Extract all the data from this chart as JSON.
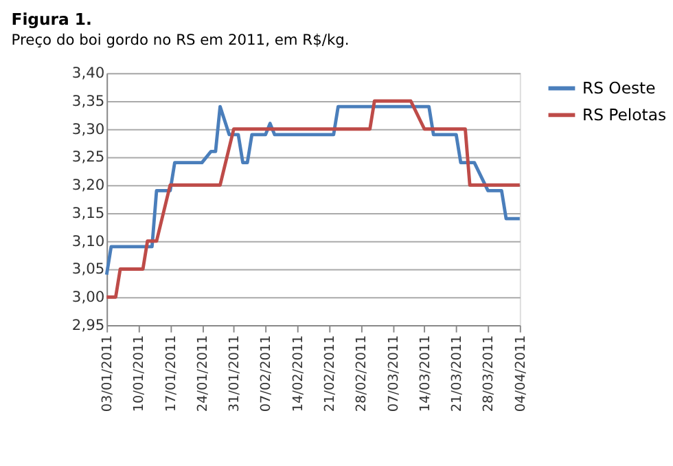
{
  "chart_data": {
    "type": "step",
    "title": "Figura 1.",
    "subtitle": "Preço do boi gordo no RS em 2011, em R$/kg.",
    "series": [
      {
        "name": "RS Oeste",
        "color": "#4a7ebb",
        "x": [
          "2011-01-03",
          "2011-01-04",
          "2011-01-13",
          "2011-01-14",
          "2011-01-17",
          "2011-01-18",
          "2011-01-24",
          "2011-01-26",
          "2011-01-27",
          "2011-01-28",
          "2011-01-30",
          "2011-02-01",
          "2011-02-02",
          "2011-02-03",
          "2011-02-04",
          "2011-02-07",
          "2011-02-08",
          "2011-02-09",
          "2011-02-22",
          "2011-02-23",
          "2011-03-15",
          "2011-03-16",
          "2011-03-21",
          "2011-03-22",
          "2011-03-25",
          "2011-03-28",
          "2011-03-31",
          "2011-04-01",
          "2011-04-04"
        ],
        "values": [
          3.04,
          3.09,
          3.09,
          3.19,
          3.19,
          3.24,
          3.24,
          3.26,
          3.26,
          3.34,
          3.29,
          3.29,
          3.24,
          3.24,
          3.29,
          3.29,
          3.31,
          3.29,
          3.29,
          3.34,
          3.34,
          3.29,
          3.29,
          3.24,
          3.24,
          3.19,
          3.19,
          3.14,
          3.14
        ]
      },
      {
        "name": "RS Pelotas",
        "color": "#be4b48",
        "x": [
          "2011-01-03",
          "2011-01-05",
          "2011-01-06",
          "2011-01-11",
          "2011-01-12",
          "2011-01-14",
          "2011-01-17",
          "2011-01-28",
          "2011-01-31",
          "2011-03-02",
          "2011-03-03",
          "2011-03-11",
          "2011-03-14",
          "2011-03-23",
          "2011-03-24",
          "2011-04-04"
        ],
        "values": [
          3.0,
          3.0,
          3.05,
          3.05,
          3.1,
          3.1,
          3.2,
          3.2,
          3.3,
          3.3,
          3.35,
          3.35,
          3.3,
          3.3,
          3.2,
          3.2
        ]
      }
    ],
    "xlim": [
      "2011-01-03",
      "2011-04-04"
    ],
    "xticks": [
      {
        "value": "2011-01-03",
        "label": "03/01/2011"
      },
      {
        "value": "2011-01-10",
        "label": "10/01/2011"
      },
      {
        "value": "2011-01-17",
        "label": "17/01/2011"
      },
      {
        "value": "2011-01-24",
        "label": "24/01/2011"
      },
      {
        "value": "2011-01-31",
        "label": "31/01/2011"
      },
      {
        "value": "2011-02-07",
        "label": "07/02/2011"
      },
      {
        "value": "2011-02-14",
        "label": "14/02/2011"
      },
      {
        "value": "2011-02-21",
        "label": "21/02/2011"
      },
      {
        "value": "2011-02-28",
        "label": "28/02/2011"
      },
      {
        "value": "2011-03-07",
        "label": "07/03/2011"
      },
      {
        "value": "2011-03-14",
        "label": "14/03/2011"
      },
      {
        "value": "2011-03-21",
        "label": "21/03/2011"
      },
      {
        "value": "2011-03-28",
        "label": "28/03/2011"
      },
      {
        "value": "2011-04-04",
        "label": "04/04/2011"
      }
    ],
    "ylim": [
      2.95,
      3.4
    ],
    "yticks": [
      {
        "value": 2.95,
        "label": "2,95"
      },
      {
        "value": 3.0,
        "label": "3,00"
      },
      {
        "value": 3.05,
        "label": "3,05"
      },
      {
        "value": 3.1,
        "label": "3,10"
      },
      {
        "value": 3.15,
        "label": "3,15"
      },
      {
        "value": 3.2,
        "label": "3,20"
      },
      {
        "value": 3.25,
        "label": "3,25"
      },
      {
        "value": 3.3,
        "label": "3,30"
      },
      {
        "value": 3.35,
        "label": "3,35"
      },
      {
        "value": 3.4,
        "label": "3,40"
      }
    ],
    "grid": "y",
    "legend": "right",
    "marker": "none",
    "line_style": "solid"
  }
}
